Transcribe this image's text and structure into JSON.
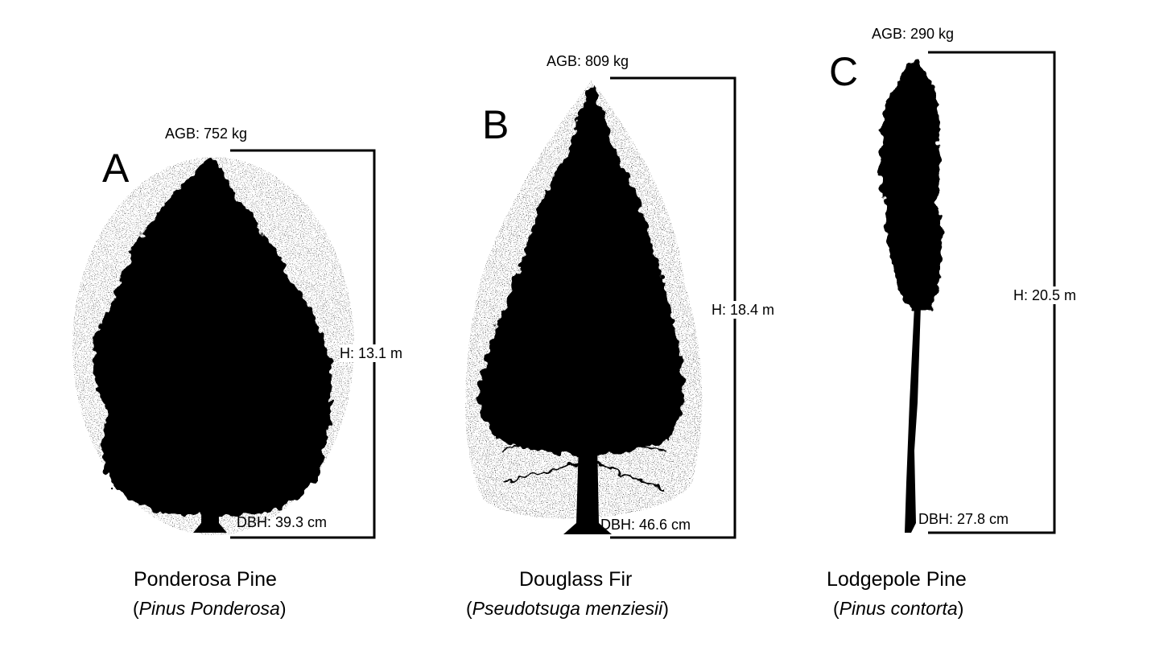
{
  "panels": [
    {
      "letter": "A",
      "agb": "AGB: 752 kg",
      "height": "H: 13.1 m",
      "dbh": "DBH: 39.3 cm",
      "common_name": "Ponderosa Pine",
      "scientific_name": "Pinus Ponderosa",
      "tree_shape": "broad-pine-silhouette"
    },
    {
      "letter": "B",
      "agb": "AGB: 809 kg",
      "height": "H: 18.4 m",
      "dbh": "DBH: 46.6 cm",
      "common_name": "Douglass Fir",
      "scientific_name": "Pseudotsuga menziesii",
      "tree_shape": "conical-fir-silhouette"
    },
    {
      "letter": "C",
      "agb": "AGB: 290 kg",
      "height": "H: 20.5 m",
      "dbh": "DBH: 27.8 cm",
      "common_name": "Lodgepole Pine",
      "scientific_name": "Pinus contorta",
      "tree_shape": "slender-pine-silhouette"
    }
  ],
  "colors": {
    "ink": "#000000",
    "background": "#ffffff",
    "haze": "#9a9a9a"
  }
}
